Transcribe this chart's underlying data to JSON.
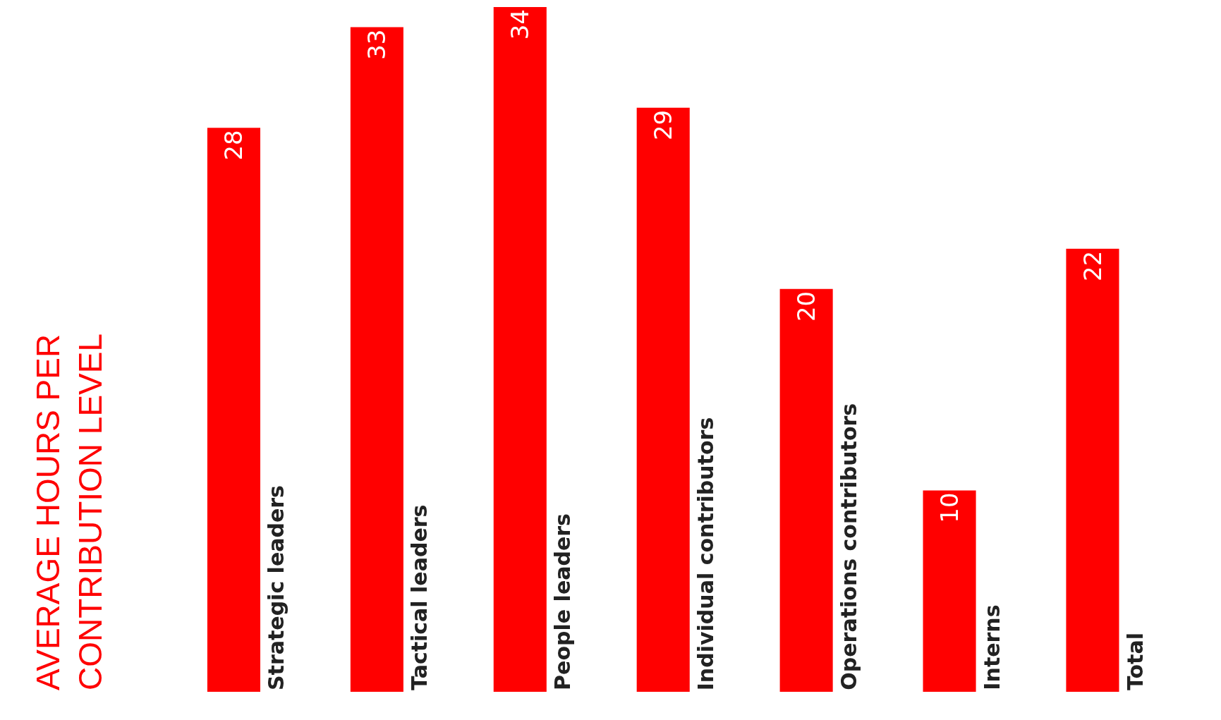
{
  "chart_data": {
    "type": "bar",
    "title": "AVERAGE HOURS PER\nCONTRIBUTION LEVEL",
    "categories": [
      "Strategic leaders",
      "Tactical leaders",
      "People leaders",
      "Individual contributors",
      "Operations contributors",
      "Interns",
      "Total"
    ],
    "values": [
      28,
      33,
      34,
      29,
      20,
      10,
      22
    ],
    "color": "#ff0000",
    "data_labels": true
  }
}
